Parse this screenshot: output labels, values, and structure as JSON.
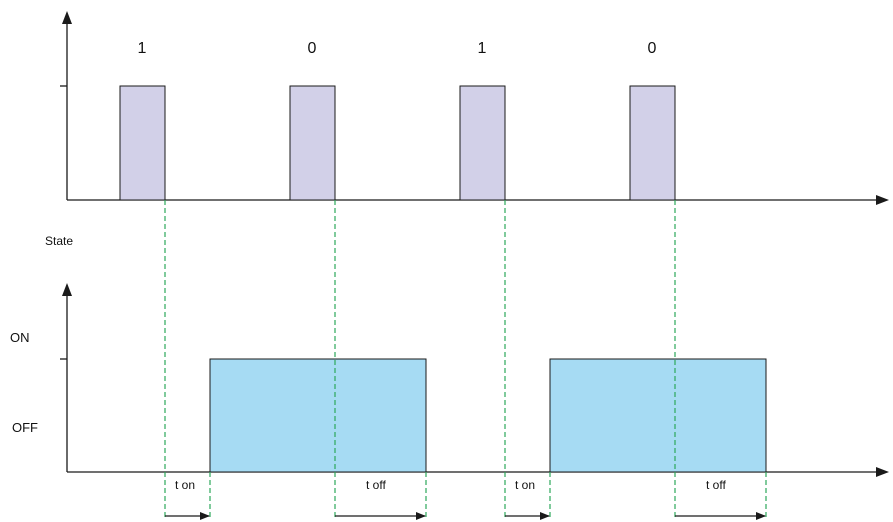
{
  "bits": [
    "1",
    "0",
    "1",
    "0"
  ],
  "labels": {
    "state": "State",
    "on": "ON",
    "off": "OFF",
    "t_on": "t on",
    "t_off": "t off"
  },
  "colors": {
    "pulse_fill": "#d2d0e8",
    "state_fill": "#a6dbf3",
    "guide_line": "#2ca85a",
    "stroke": "#1a1a1a"
  }
}
